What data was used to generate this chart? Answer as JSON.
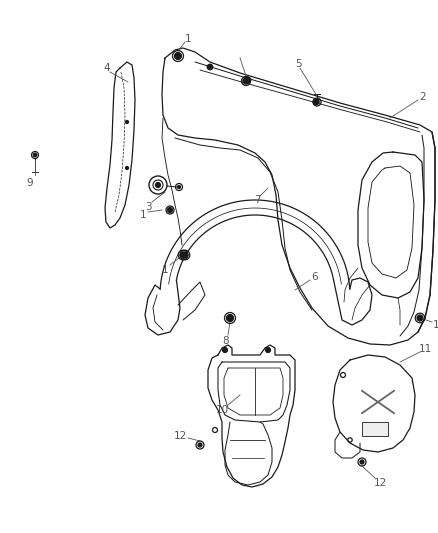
{
  "background_color": "#ffffff",
  "line_color": "#1a1a1a",
  "callout_color": "#555555",
  "fig_width": 4.38,
  "fig_height": 5.33,
  "dpi": 100
}
